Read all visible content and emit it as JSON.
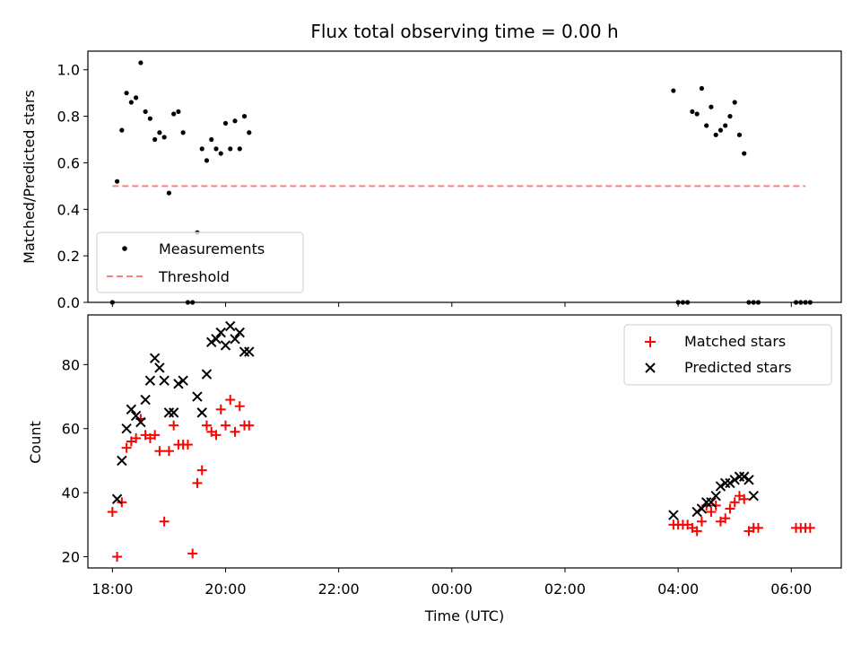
{
  "chart_data": [
    {
      "type": "scatter",
      "title": "Flux total observing time = 0.00 h",
      "xlabel": "",
      "ylabel": "Matched/Predicted stars",
      "xlim": [
        "17:34",
        "06:53"
      ],
      "ylim": [
        0.0,
        1.08
      ],
      "yticks": [
        0.0,
        0.2,
        0.4,
        0.6,
        0.8,
        1.0
      ],
      "ytick_labels": [
        "0.0",
        "0.2",
        "0.4",
        "0.6",
        "0.8",
        "1.0"
      ],
      "grid": false,
      "legend": {
        "location": "lower-left",
        "entries": [
          "Measurements",
          "Threshold"
        ]
      },
      "series": [
        {
          "name": "Measurements",
          "marker": "dot",
          "color": "#000000",
          "x": [
            "18:00",
            "18:05",
            "18:10",
            "18:15",
            "18:20",
            "18:25",
            "18:30",
            "18:35",
            "18:40",
            "18:45",
            "18:50",
            "18:55",
            "19:00",
            "19:05",
            "19:10",
            "19:15",
            "19:20",
            "19:25",
            "19:30",
            "19:35",
            "19:40",
            "19:45",
            "19:50",
            "19:55",
            "20:00",
            "20:05",
            "20:10",
            "20:15",
            "20:20",
            "20:25",
            "03:55",
            "04:00",
            "04:05",
            "04:10",
            "04:15",
            "04:20",
            "04:25",
            "04:30",
            "04:35",
            "04:40",
            "04:45",
            "04:50",
            "04:55",
            "05:00",
            "05:05",
            "05:10",
            "05:15",
            "05:20",
            "05:25",
            "06:05",
            "06:10",
            "06:15",
            "06:20"
          ],
          "y": [
            0.0,
            0.52,
            0.74,
            0.9,
            0.86,
            0.88,
            1.03,
            0.82,
            0.79,
            0.7,
            0.73,
            0.71,
            0.47,
            0.81,
            0.82,
            0.73,
            0.0,
            0.0,
            0.3,
            0.66,
            0.61,
            0.7,
            0.66,
            0.64,
            0.77,
            0.66,
            0.78,
            0.66,
            0.8,
            0.73,
            0.91,
            0.0,
            0.0,
            0.0,
            0.82,
            0.81,
            0.92,
            0.76,
            0.84,
            0.72,
            0.74,
            0.76,
            0.8,
            0.86,
            0.72,
            0.64,
            0.0,
            0.0,
            0.0,
            0.0,
            0.0,
            0.0,
            0.0
          ]
        },
        {
          "name": "Threshold",
          "style": "dashed",
          "color": "#ff7f7f",
          "x": [
            "18:00",
            "06:15"
          ],
          "y": [
            0.5,
            0.5
          ]
        }
      ]
    },
    {
      "type": "scatter",
      "title": "",
      "xlabel": "Time (UTC)",
      "ylabel": "Count",
      "xlim": [
        "17:34",
        "06:53"
      ],
      "ylim": [
        16.5,
        95.5
      ],
      "xticks": [
        "18:00",
        "20:00",
        "22:00",
        "00:00",
        "02:00",
        "04:00",
        "06:00"
      ],
      "yticks": [
        20,
        40,
        60,
        80
      ],
      "ytick_labels": [
        "20",
        "40",
        "60",
        "80"
      ],
      "grid": false,
      "legend": {
        "location": "top-right",
        "entries": [
          "Matched stars",
          "Predicted stars"
        ]
      },
      "series": [
        {
          "name": "Matched stars",
          "marker": "plus",
          "color": "#ff0000",
          "x": [
            "18:00",
            "18:05",
            "18:10",
            "18:15",
            "18:20",
            "18:25",
            "18:30",
            "18:35",
            "18:40",
            "18:45",
            "18:50",
            "18:55",
            "19:00",
            "19:05",
            "19:10",
            "19:15",
            "19:20",
            "19:25",
            "19:30",
            "19:35",
            "19:40",
            "19:45",
            "19:50",
            "19:55",
            "20:00",
            "20:05",
            "20:10",
            "20:15",
            "20:20",
            "20:25",
            "03:55",
            "04:00",
            "04:05",
            "04:10",
            "04:15",
            "04:20",
            "04:25",
            "04:30",
            "04:35",
            "04:40",
            "04:45",
            "04:50",
            "04:55",
            "05:00",
            "05:05",
            "05:10",
            "05:15",
            "05:20",
            "05:25",
            "06:05",
            "06:10",
            "06:15",
            "06:20"
          ],
          "y": [
            34,
            20,
            37,
            54,
            56,
            57,
            63,
            58,
            57,
            58,
            53,
            31,
            53,
            61,
            55,
            55,
            55,
            21,
            43,
            47,
            61,
            59,
            58,
            66,
            61,
            69,
            59,
            67,
            61,
            61,
            30,
            30,
            30,
            30,
            29,
            28,
            31,
            36,
            34,
            36,
            31,
            32,
            35,
            37,
            39,
            38,
            28,
            29,
            29,
            29,
            29,
            29,
            29
          ]
        },
        {
          "name": "Predicted stars",
          "marker": "x",
          "color": "#000000",
          "x": [
            "18:05",
            "18:10",
            "18:15",
            "18:20",
            "18:25",
            "18:30",
            "18:35",
            "18:40",
            "18:45",
            "18:50",
            "18:55",
            "19:00",
            "19:05",
            "19:10",
            "19:15",
            "19:30",
            "19:35",
            "19:40",
            "19:45",
            "19:50",
            "19:55",
            "20:00",
            "20:05",
            "20:10",
            "20:15",
            "20:20",
            "20:25",
            "03:55",
            "04:20",
            "04:25",
            "04:30",
            "04:35",
            "04:40",
            "04:45",
            "04:50",
            "04:55",
            "05:00",
            "05:05",
            "05:10",
            "05:15",
            "05:20"
          ],
          "y": [
            38,
            50,
            60,
            66,
            64,
            62,
            69,
            75,
            82,
            79,
            75,
            65,
            65,
            74,
            75,
            70,
            65,
            77,
            87,
            88,
            90,
            86,
            92,
            88,
            90,
            84,
            84,
            33,
            34,
            35,
            37,
            37,
            39,
            42,
            43,
            43,
            44,
            45,
            45,
            44,
            39
          ]
        }
      ]
    }
  ]
}
